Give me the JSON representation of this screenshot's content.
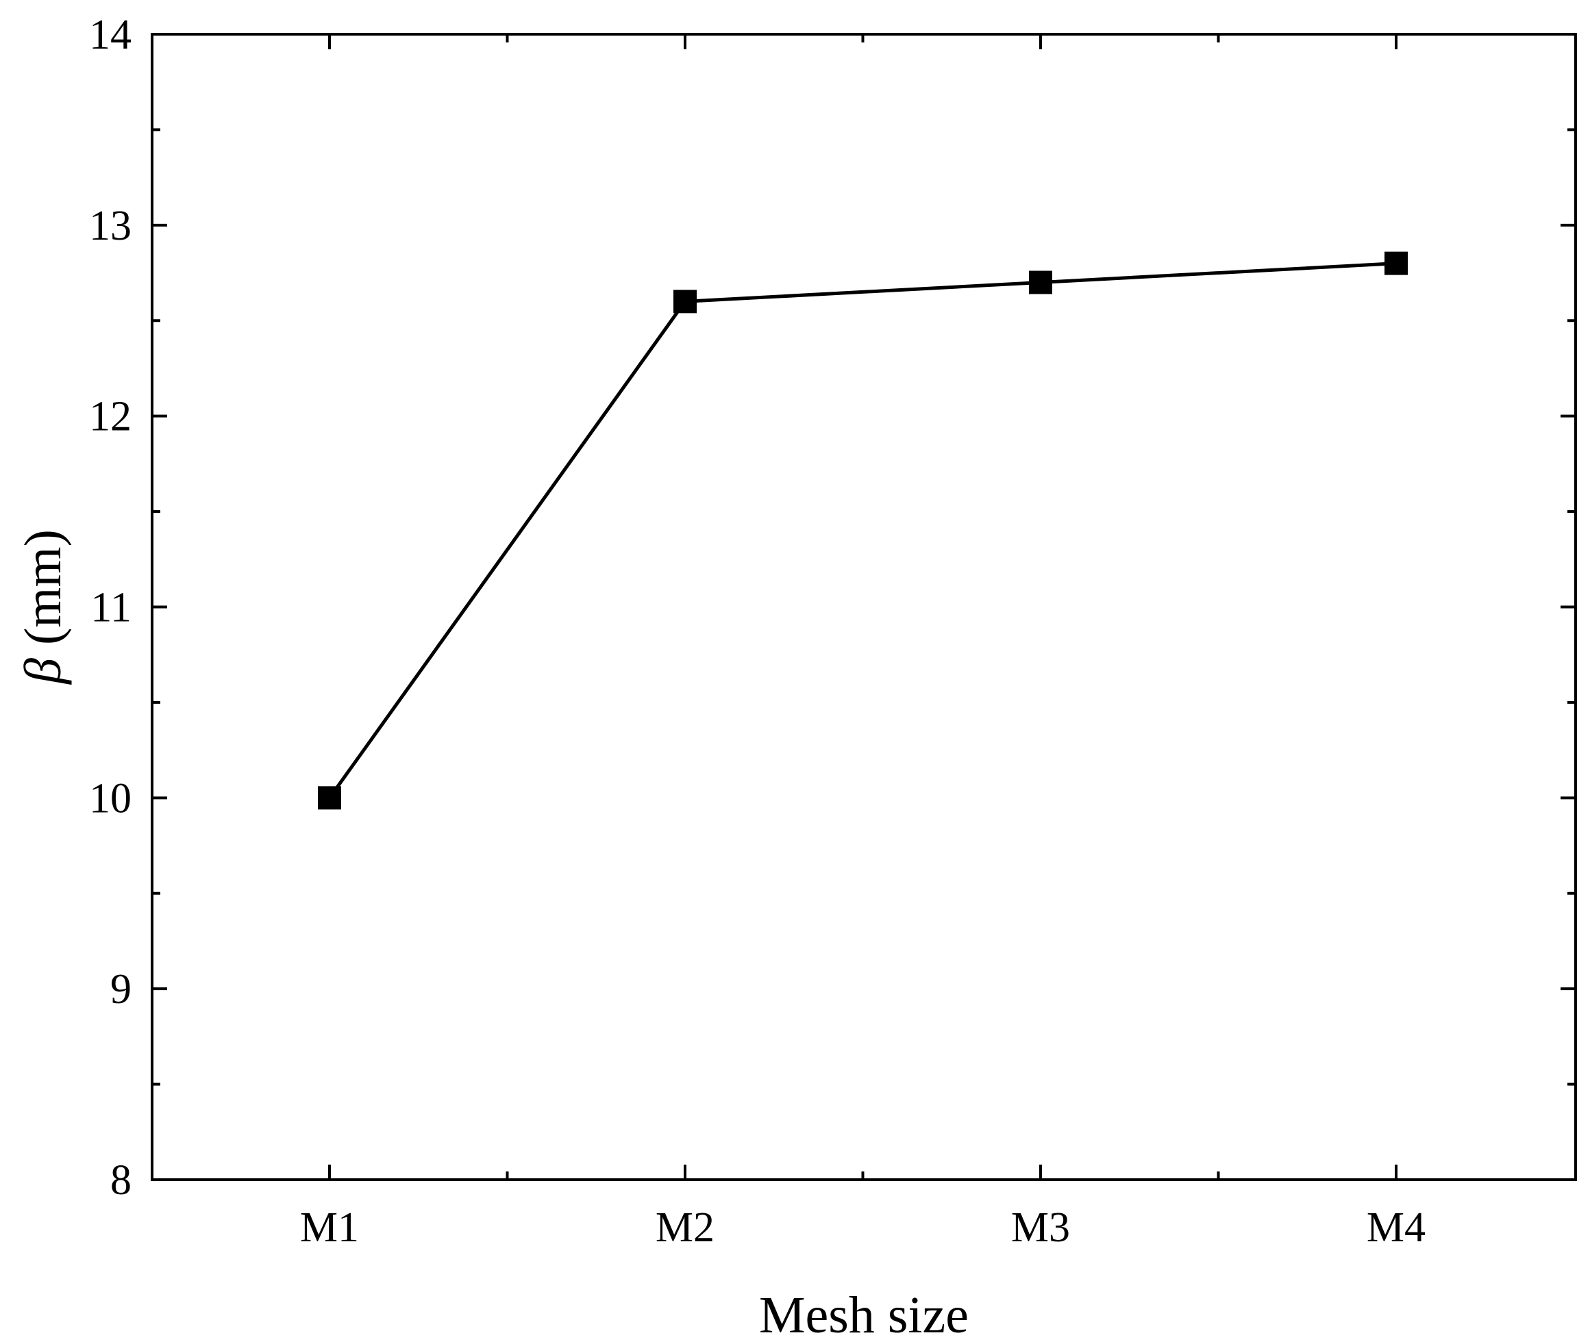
{
  "chart_data": {
    "type": "line",
    "title": "",
    "xlabel": "Mesh size",
    "ylabel_symbol": "β",
    "ylabel_unit": " (mm)",
    "categories": [
      "M1",
      "M2",
      "M3",
      "M4"
    ],
    "series": [
      {
        "values": [
          10.0,
          12.6,
          12.7,
          12.8
        ],
        "color": "#000000",
        "marker": "square"
      }
    ],
    "ylim": [
      8,
      14
    ],
    "yticks": [
      "8",
      "9",
      "10",
      "11",
      "12",
      "13",
      "14"
    ],
    "grid": false,
    "legend": "none"
  }
}
